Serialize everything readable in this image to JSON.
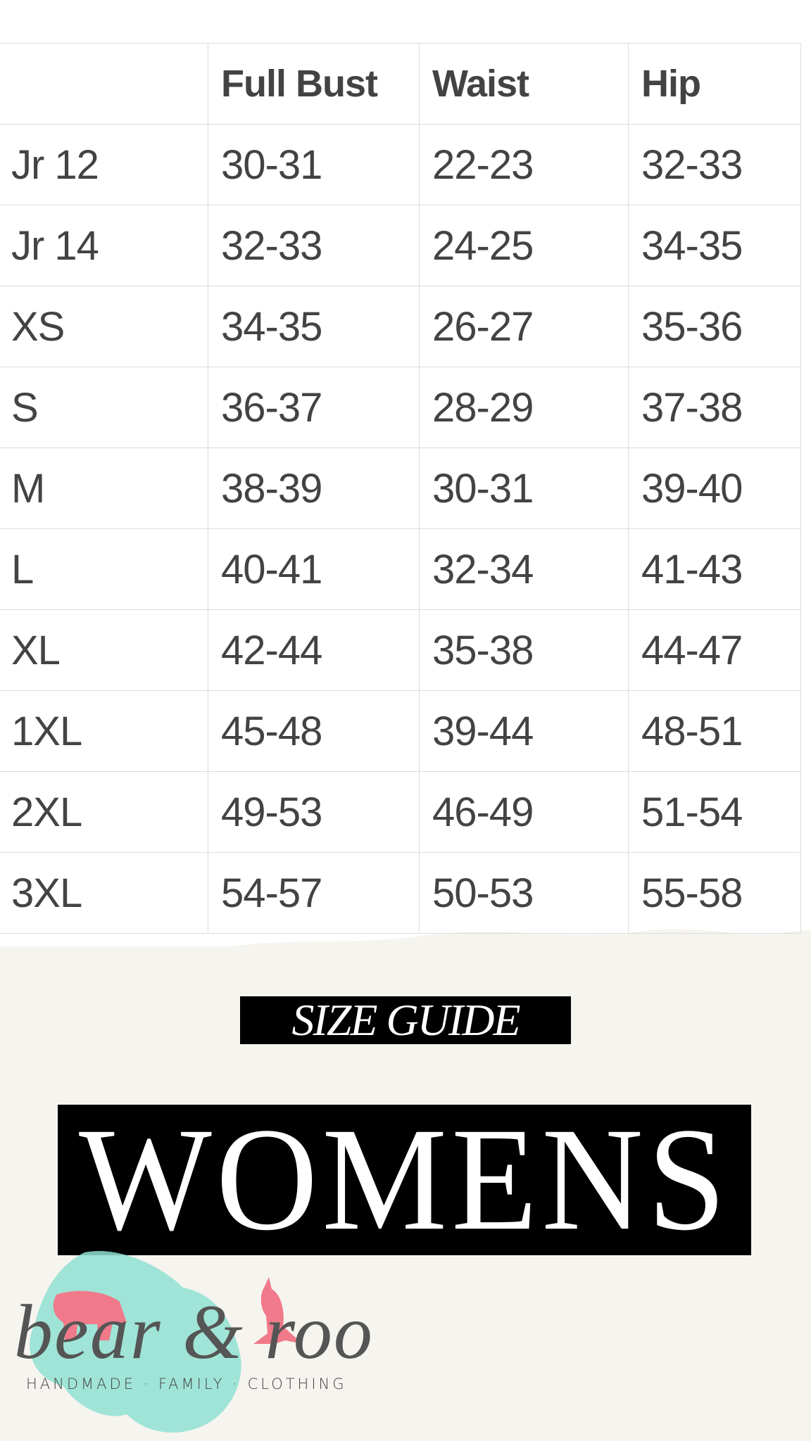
{
  "table": {
    "headers": [
      "",
      "Full Bust",
      "Waist",
      "Hip"
    ],
    "rows": [
      [
        "Jr 12",
        "30-31",
        "22-23",
        "32-33"
      ],
      [
        "Jr 14",
        "32-33",
        "24-25",
        "34-35"
      ],
      [
        "XS",
        "34-35",
        "26-27",
        "35-36"
      ],
      [
        "S",
        "36-37",
        "28-29",
        "37-38"
      ],
      [
        "M",
        "38-39",
        "30-31",
        "39-40"
      ],
      [
        "L",
        "40-41",
        "32-34",
        "41-43"
      ],
      [
        "XL",
        "42-44",
        "35-38",
        "44-47"
      ],
      [
        "1XL",
        "45-48",
        "39-44",
        "48-51"
      ],
      [
        "2XL",
        "49-53",
        "46-49",
        "51-54"
      ],
      [
        "3XL",
        "54-57",
        "50-53",
        "55-58"
      ]
    ]
  },
  "banner": {
    "subtitle": "SIZE GUIDE",
    "title": "WOMENS"
  },
  "logo": {
    "brand": "bear & roo",
    "tagline": "HANDMADE · FAMILY · CLOTHING"
  },
  "colors": {
    "text": "#434343",
    "background": "#f6f4ef",
    "logo_splash": "#8fe0d2",
    "logo_animals": "#f07a8a"
  }
}
